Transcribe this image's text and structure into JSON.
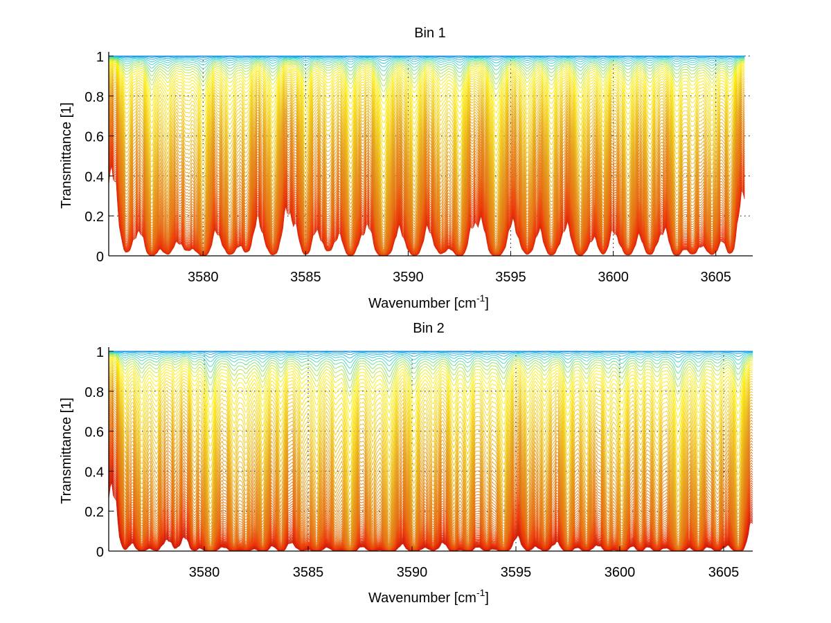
{
  "figure": {
    "background": "#ffffff"
  },
  "chart_data": [
    {
      "type": "line",
      "title": "Bin 1",
      "xlabel": "Wavenumber [cm",
      "xlabel_superscript": "-1",
      "xlabel_suffix": "]",
      "ylabel": "Transmittance [1]",
      "xlim": [
        3575.4,
        3606.8
      ],
      "ylim": [
        0,
        1
      ],
      "xticks": [
        3580,
        3585,
        3590,
        3595,
        3600,
        3605
      ],
      "xtick_labels": [
        "3580",
        "3585",
        "3590",
        "3595",
        "3600",
        "3605"
      ],
      "yticks": [
        0,
        0.2,
        0.4,
        0.6,
        0.8,
        1
      ],
      "ytick_labels": [
        "0",
        "0.2",
        "0.4",
        "0.6",
        "0.8",
        "1"
      ],
      "grid": true,
      "grid_style": "dotted",
      "colormap": "jet-like (cyan/blue at T≈1 → yellow → orange → red at T≈0)",
      "series_count": 80,
      "data_extent_x": [
        3575.4,
        3606.4
      ],
      "series_description": "Family of transmittance spectra for increasing absorber amount; each curve T(ν)=exp(-k·(c + Σ s_i·L(ν-ν_i)))",
      "absorption_lines": [
        {
          "center": 3576.3,
          "strength": 0.6
        },
        {
          "center": 3577.5,
          "strength": 0.9
        },
        {
          "center": 3578.3,
          "strength": 0.6
        },
        {
          "center": 3579.2,
          "strength": 0.4
        },
        {
          "center": 3580.0,
          "strength": 1.0
        },
        {
          "center": 3581.3,
          "strength": 0.7
        },
        {
          "center": 3582.1,
          "strength": 0.5
        },
        {
          "center": 3583.4,
          "strength": 0.8
        },
        {
          "center": 3585.0,
          "strength": 0.7
        },
        {
          "center": 3586.1,
          "strength": 0.5
        },
        {
          "center": 3587.2,
          "strength": 0.9
        },
        {
          "center": 3588.8,
          "strength": 1.3
        },
        {
          "center": 3590.3,
          "strength": 0.9
        },
        {
          "center": 3591.6,
          "strength": 0.6
        },
        {
          "center": 3592.5,
          "strength": 1.0
        },
        {
          "center": 3594.3,
          "strength": 1.2
        },
        {
          "center": 3595.8,
          "strength": 0.7
        },
        {
          "center": 3597.0,
          "strength": 0.8
        },
        {
          "center": 3598.4,
          "strength": 0.9
        },
        {
          "center": 3599.5,
          "strength": 0.6
        },
        {
          "center": 3600.7,
          "strength": 0.8
        },
        {
          "center": 3601.8,
          "strength": 0.7
        },
        {
          "center": 3603.1,
          "strength": 0.8
        },
        {
          "center": 3603.9,
          "strength": 0.6
        },
        {
          "center": 3604.8,
          "strength": 0.7
        },
        {
          "center": 3605.7,
          "strength": 0.6
        }
      ],
      "line_width_cm1": 0.28,
      "continuum": 0.04,
      "absorber_amount_range": [
        0.0,
        6.5
      ]
    },
    {
      "type": "line",
      "title": "Bin 2",
      "xlabel": "Wavenumber [cm",
      "xlabel_superscript": "-1",
      "xlabel_suffix": "]",
      "ylabel": "Transmittance [1]",
      "xlim": [
        3575.4,
        3606.4
      ],
      "ylim": [
        0,
        1
      ],
      "xticks": [
        3580,
        3585,
        3590,
        3595,
        3600,
        3605
      ],
      "xtick_labels": [
        "3580",
        "3585",
        "3590",
        "3595",
        "3600",
        "3605"
      ],
      "yticks": [
        0,
        0.2,
        0.4,
        0.6,
        0.8,
        1
      ],
      "ytick_labels": [
        "0",
        "0.2",
        "0.4",
        "0.6",
        "0.8",
        "1"
      ],
      "grid": true,
      "grid_style": "dotted",
      "colormap": "jet-like (cyan/blue at T≈1 → yellow → orange → red at T≈0)",
      "series_count": 80,
      "data_extent_x": [
        3575.4,
        3606.4
      ],
      "series_description": "Family of transmittance spectra for increasing absorber amount; each curve T(ν)=exp(-k·(c + Σ s_i·L(ν-ν_i)))",
      "absorption_lines": [
        {
          "center": 3576.2,
          "strength": 0.5
        },
        {
          "center": 3577.0,
          "strength": 0.8
        },
        {
          "center": 3577.7,
          "strength": 0.6
        },
        {
          "center": 3578.6,
          "strength": 0.4
        },
        {
          "center": 3579.5,
          "strength": 0.5
        },
        {
          "center": 3580.3,
          "strength": 1.4
        },
        {
          "center": 3581.4,
          "strength": 0.8
        },
        {
          "center": 3582.0,
          "strength": 0.7
        },
        {
          "center": 3582.8,
          "strength": 0.9
        },
        {
          "center": 3583.7,
          "strength": 0.7
        },
        {
          "center": 3584.7,
          "strength": 0.6
        },
        {
          "center": 3585.4,
          "strength": 0.9
        },
        {
          "center": 3586.3,
          "strength": 0.6
        },
        {
          "center": 3587.0,
          "strength": 1.5
        },
        {
          "center": 3588.1,
          "strength": 0.7
        },
        {
          "center": 3588.9,
          "strength": 1.3
        },
        {
          "center": 3590.1,
          "strength": 1.1
        },
        {
          "center": 3591.0,
          "strength": 0.6
        },
        {
          "center": 3592.0,
          "strength": 0.8
        },
        {
          "center": 3592.7,
          "strength": 0.9
        },
        {
          "center": 3593.6,
          "strength": 0.6
        },
        {
          "center": 3594.4,
          "strength": 1.1
        },
        {
          "center": 3595.6,
          "strength": 0.6
        },
        {
          "center": 3596.4,
          "strength": 0.7
        },
        {
          "center": 3597.5,
          "strength": 1.0
        },
        {
          "center": 3598.4,
          "strength": 0.8
        },
        {
          "center": 3599.4,
          "strength": 0.7
        },
        {
          "center": 3600.1,
          "strength": 1.0
        },
        {
          "center": 3601.0,
          "strength": 0.6
        },
        {
          "center": 3601.8,
          "strength": 0.7
        },
        {
          "center": 3602.8,
          "strength": 1.5
        },
        {
          "center": 3603.8,
          "strength": 0.9
        },
        {
          "center": 3604.7,
          "strength": 0.7
        },
        {
          "center": 3605.7,
          "strength": 1.2
        }
      ],
      "line_width_cm1": 0.25,
      "continuum": 0.05,
      "absorber_amount_range": [
        0.0,
        8.0
      ]
    }
  ]
}
